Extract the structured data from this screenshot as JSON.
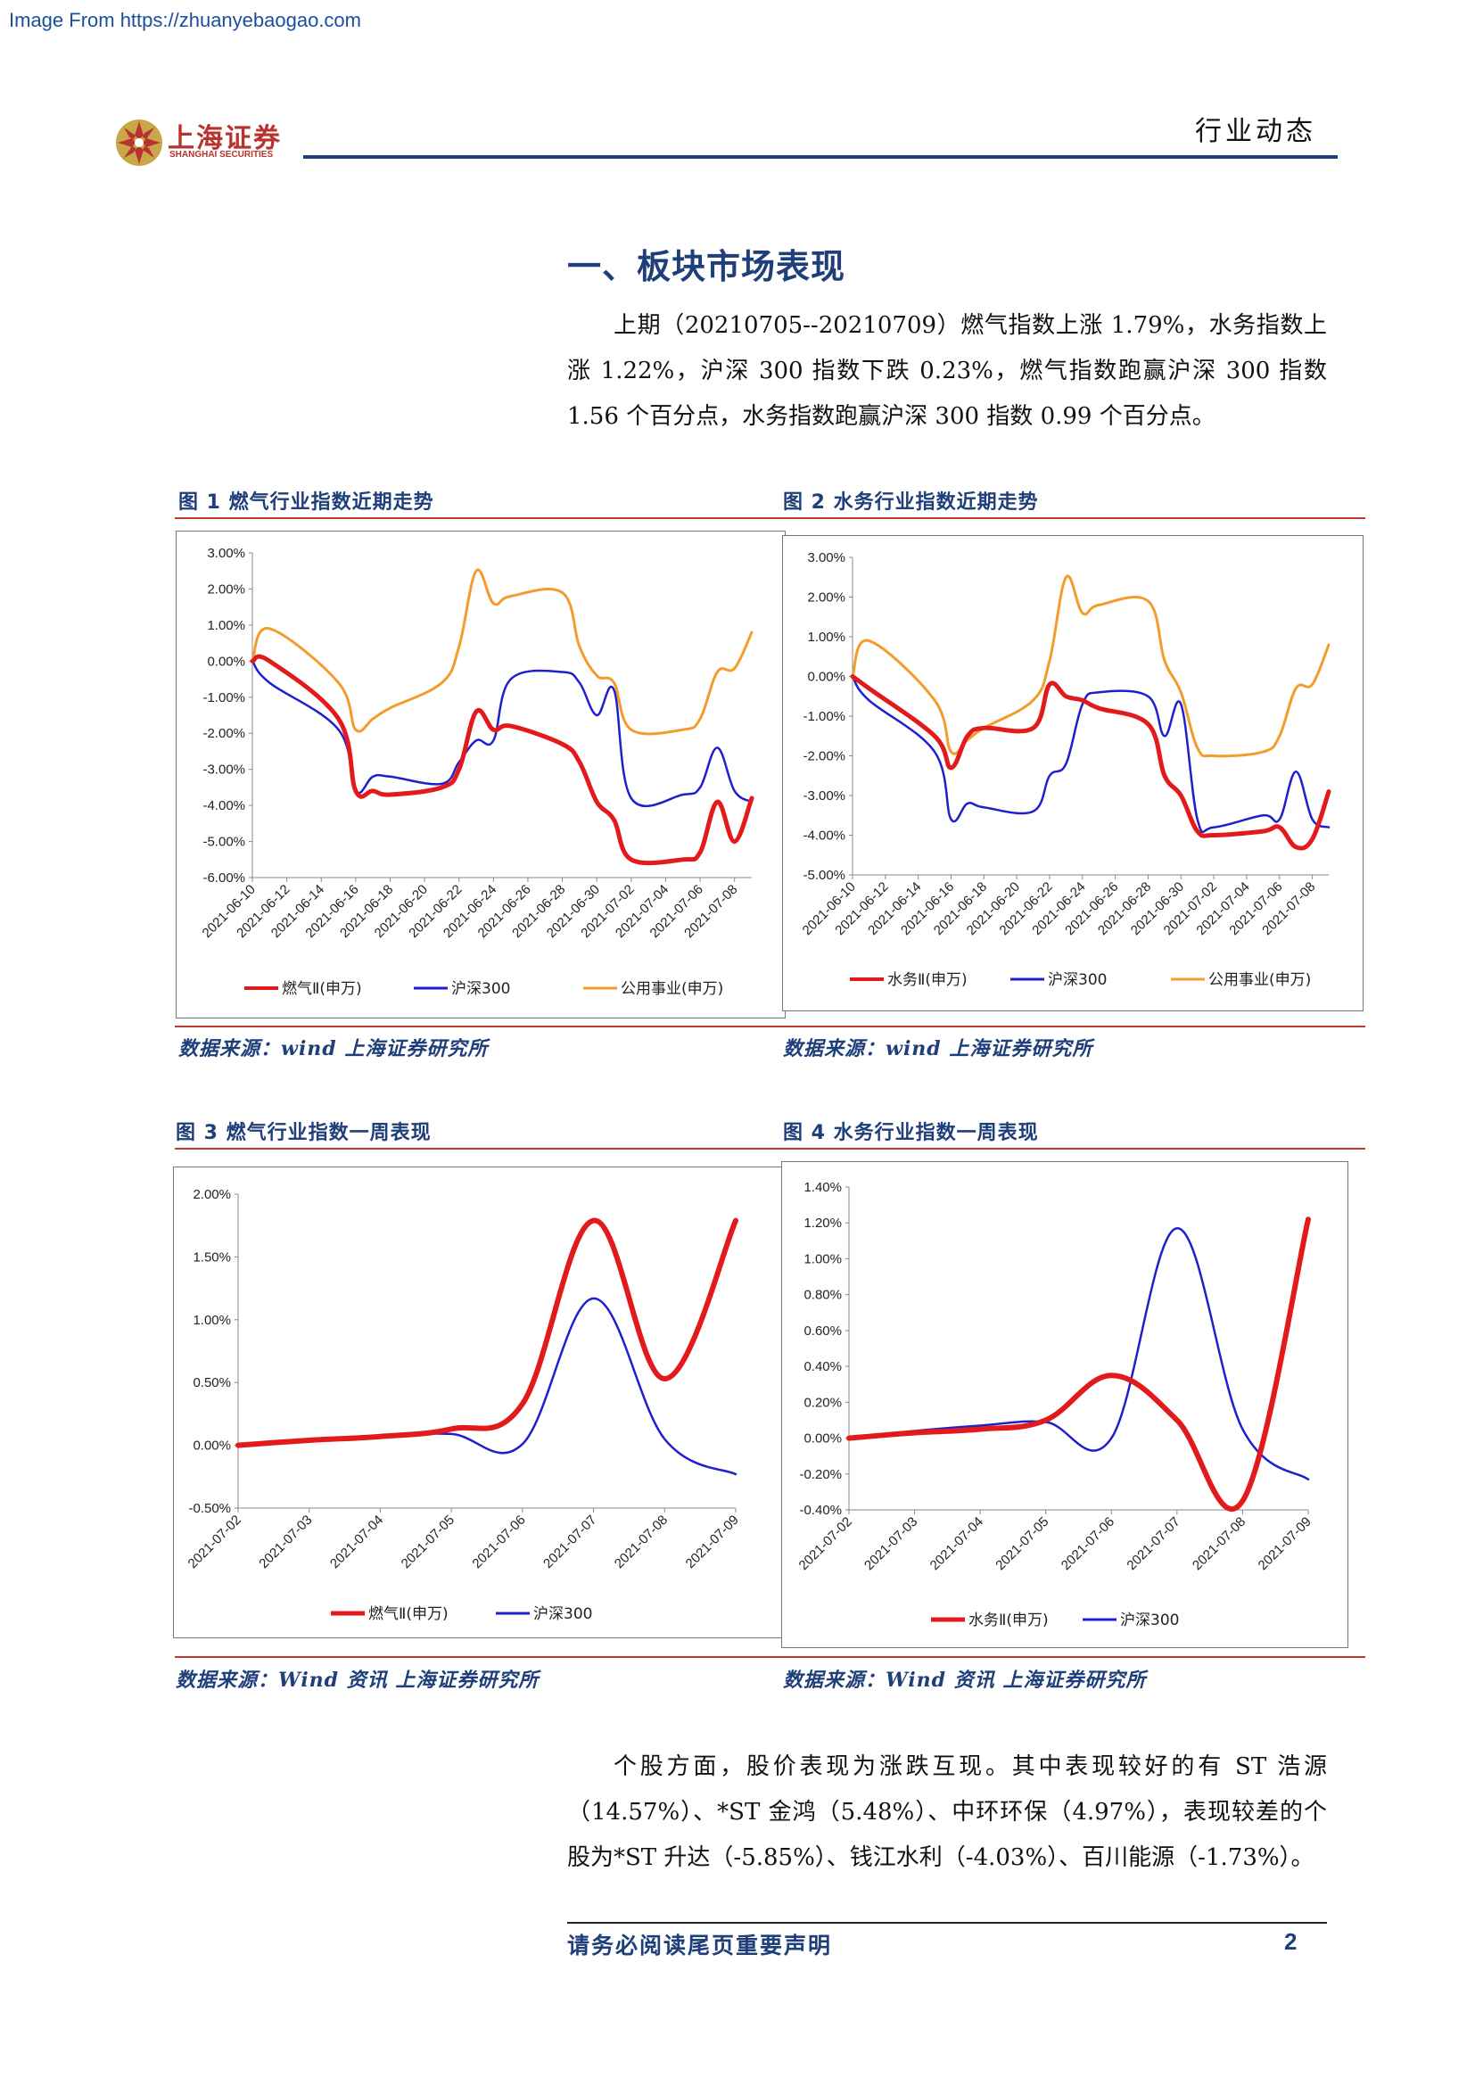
{
  "watermark": "Image From https://zhuanyebaogao.com",
  "header": {
    "logo_cn": "上海证券",
    "logo_en": "SHANGHAI SECURITIES",
    "section_tag": "行业动态"
  },
  "section_title": "一、板块市场表现",
  "paragraph1": "上期（20210705--20210709）燃气指数上涨 1.79%，水务指数上涨 1.22%，沪深 300 指数下跌 0.23%，燃气指数跑赢沪深 300 指数 1.56 个百分点，水务指数跑赢沪深 300 指数 0.99 个百分点。",
  "paragraph2": "个股方面，股价表现为涨跌互现。其中表现较好的有 ST 浩源（14.57%）、*ST 金鸿（5.48%）、中环环保（4.97%），表现较差的个股为*ST 升达（-5.85%）、钱江水利（-4.03%）、百川能源（-1.73%）。",
  "figures": {
    "fig1": {
      "title": "图 1 燃气行业指数近期走势",
      "source": "数据来源：wind 上海证券研究所"
    },
    "fig2": {
      "title": "图 2 水务行业指数近期走势",
      "source": "数据来源：wind 上海证券研究所"
    },
    "fig3": {
      "title": "图 3 燃气行业指数一周表现",
      "source": "数据来源：Wind 资讯 上海证券研究所"
    },
    "fig4": {
      "title": "图 4 水务行业指数一周表现",
      "source": "数据来源：Wind 资讯 上海证券研究所"
    }
  },
  "colors": {
    "red": "#e31a1c",
    "blue": "#1f1fcf",
    "orange": "#f39c2b",
    "navy": "#1f3f7a"
  },
  "footer": {
    "text": "请务必阅读尾页重要声明",
    "page": "2"
  },
  "chart_data": [
    {
      "id": "fig1",
      "type": "line",
      "x": [
        "2021-06-10",
        "2021-06-11",
        "2021-06-15",
        "2021-06-16",
        "2021-06-17",
        "2021-06-18",
        "2021-06-21",
        "2021-06-22",
        "2021-06-23",
        "2021-06-24",
        "2021-06-25",
        "2021-06-28",
        "2021-06-29",
        "2021-06-30",
        "2021-07-01",
        "2021-07-02",
        "2021-07-05",
        "2021-07-06",
        "2021-07-07",
        "2021-07-08",
        "2021-07-09"
      ],
      "x_ticks": [
        "2021-06-10",
        "2021-06-12",
        "2021-06-14",
        "2021-06-16",
        "2021-06-18",
        "2021-06-20",
        "2021-06-22",
        "2021-06-24",
        "2021-06-26",
        "2021-06-28",
        "2021-06-30",
        "2021-07-02",
        "2021-07-04",
        "2021-07-06",
        "2021-07-08"
      ],
      "y_ticks": [
        "3.00%",
        "2.00%",
        "1.00%",
        "0.00%",
        "-1.00%",
        "-2.00%",
        "-3.00%",
        "-4.00%",
        "-5.00%",
        "-6.00%"
      ],
      "ylim": [
        -6,
        3
      ],
      "series": [
        {
          "name": "燃气Ⅱ(申万)",
          "color": "#e31a1c",
          "width": 5,
          "values": [
            0.0,
            0.0,
            -1.6,
            -3.6,
            -3.6,
            -3.7,
            -3.5,
            -3.0,
            -1.4,
            -1.9,
            -1.8,
            -2.3,
            -2.8,
            -3.9,
            -4.4,
            -5.5,
            -5.5,
            -5.3,
            -3.9,
            -5.0,
            -3.8
          ]
        },
        {
          "name": "沪深300",
          "color": "#1f1fcf",
          "width": 2.5,
          "values": [
            0.0,
            -0.6,
            -1.9,
            -3.6,
            -3.2,
            -3.2,
            -3.4,
            -2.8,
            -2.2,
            -2.2,
            -0.5,
            -0.3,
            -0.6,
            -1.5,
            -0.8,
            -3.8,
            -3.7,
            -3.5,
            -2.4,
            -3.6,
            -3.9
          ]
        },
        {
          "name": "公用事业(申万)",
          "color": "#f39c2b",
          "width": 3,
          "values": [
            0.0,
            0.9,
            -0.6,
            -1.9,
            -1.6,
            -1.3,
            -0.6,
            0.4,
            2.5,
            1.6,
            1.8,
            1.9,
            0.4,
            -0.4,
            -0.6,
            -1.9,
            -1.9,
            -1.6,
            -0.3,
            -0.2,
            0.8
          ]
        }
      ]
    },
    {
      "id": "fig2",
      "type": "line",
      "x": [
        "2021-06-10",
        "2021-06-11",
        "2021-06-15",
        "2021-06-16",
        "2021-06-17",
        "2021-06-18",
        "2021-06-21",
        "2021-06-22",
        "2021-06-23",
        "2021-06-24",
        "2021-06-25",
        "2021-06-28",
        "2021-06-29",
        "2021-06-30",
        "2021-07-01",
        "2021-07-02",
        "2021-07-05",
        "2021-07-06",
        "2021-07-07",
        "2021-07-08",
        "2021-07-09"
      ],
      "x_ticks": [
        "2021-06-10",
        "2021-06-12",
        "2021-06-14",
        "2021-06-16",
        "2021-06-18",
        "2021-06-20",
        "2021-06-22",
        "2021-06-24",
        "2021-06-26",
        "2021-06-28",
        "2021-06-30",
        "2021-07-02",
        "2021-07-04",
        "2021-07-06",
        "2021-07-08"
      ],
      "y_ticks": [
        "3.00%",
        "2.00%",
        "1.00%",
        "0.00%",
        "-1.00%",
        "-2.00%",
        "-3.00%",
        "-4.00%",
        "-5.00%"
      ],
      "ylim": [
        -5,
        3
      ],
      "series": [
        {
          "name": "水务Ⅱ(申万)",
          "color": "#e31a1c",
          "width": 5,
          "values": [
            0.0,
            -0.3,
            -1.5,
            -2.3,
            -1.5,
            -1.3,
            -1.3,
            -0.2,
            -0.5,
            -0.6,
            -0.8,
            -1.2,
            -2.5,
            -3.0,
            -3.9,
            -4.0,
            -3.9,
            -3.8,
            -4.3,
            -4.1,
            -2.9
          ]
        },
        {
          "name": "沪深300",
          "color": "#1f1fcf",
          "width": 2.5,
          "values": [
            0.0,
            -0.6,
            -1.9,
            -3.6,
            -3.2,
            -3.3,
            -3.4,
            -2.5,
            -2.2,
            -0.7,
            -0.4,
            -0.5,
            -1.5,
            -0.7,
            -3.6,
            -3.8,
            -3.5,
            -3.6,
            -2.4,
            -3.6,
            -3.8
          ]
        },
        {
          "name": "公用事业(申万)",
          "color": "#f39c2b",
          "width": 3,
          "values": [
            0.0,
            0.9,
            -0.6,
            -1.9,
            -1.6,
            -1.3,
            -0.6,
            0.4,
            2.5,
            1.6,
            1.8,
            1.9,
            0.4,
            -0.4,
            -1.8,
            -2.0,
            -1.9,
            -1.5,
            -0.3,
            -0.2,
            0.8
          ]
        }
      ]
    },
    {
      "id": "fig3",
      "type": "line",
      "x": [
        "2021-07-02",
        "2021-07-03",
        "2021-07-04",
        "2021-07-05",
        "2021-07-06",
        "2021-07-07",
        "2021-07-08",
        "2021-07-09"
      ],
      "y_ticks": [
        "2.00%",
        "1.50%",
        "1.00%",
        "0.50%",
        "0.00%",
        "-0.50%"
      ],
      "ylim": [
        -0.5,
        2.0
      ],
      "series": [
        {
          "name": "燃气Ⅱ(申万)",
          "color": "#e31a1c",
          "width": 6,
          "values": [
            0.0,
            0.04,
            0.07,
            0.13,
            0.33,
            1.79,
            0.53,
            1.79
          ]
        },
        {
          "name": "沪深300",
          "color": "#1f1fcf",
          "width": 2.5,
          "values": [
            0.0,
            0.03,
            0.07,
            0.09,
            0.01,
            1.17,
            0.05,
            -0.23
          ]
        }
      ]
    },
    {
      "id": "fig4",
      "type": "line",
      "x": [
        "2021-07-02",
        "2021-07-03",
        "2021-07-04",
        "2021-07-05",
        "2021-07-06",
        "2021-07-07",
        "2021-07-08",
        "2021-07-09"
      ],
      "y_ticks": [
        "1.40%",
        "1.20%",
        "1.00%",
        "0.80%",
        "0.60%",
        "0.40%",
        "0.20%",
        "0.00%",
        "-0.20%",
        "-0.40%"
      ],
      "ylim": [
        -0.4,
        1.4
      ],
      "series": [
        {
          "name": "水务Ⅱ(申万)",
          "color": "#e31a1c",
          "width": 6,
          "values": [
            0.0,
            0.03,
            0.05,
            0.1,
            0.35,
            0.1,
            -0.35,
            1.22
          ]
        },
        {
          "name": "沪深300",
          "color": "#1f1fcf",
          "width": 2.5,
          "values": [
            0.0,
            0.04,
            0.07,
            0.09,
            0.0,
            1.17,
            0.05,
            -0.23
          ]
        }
      ]
    }
  ]
}
